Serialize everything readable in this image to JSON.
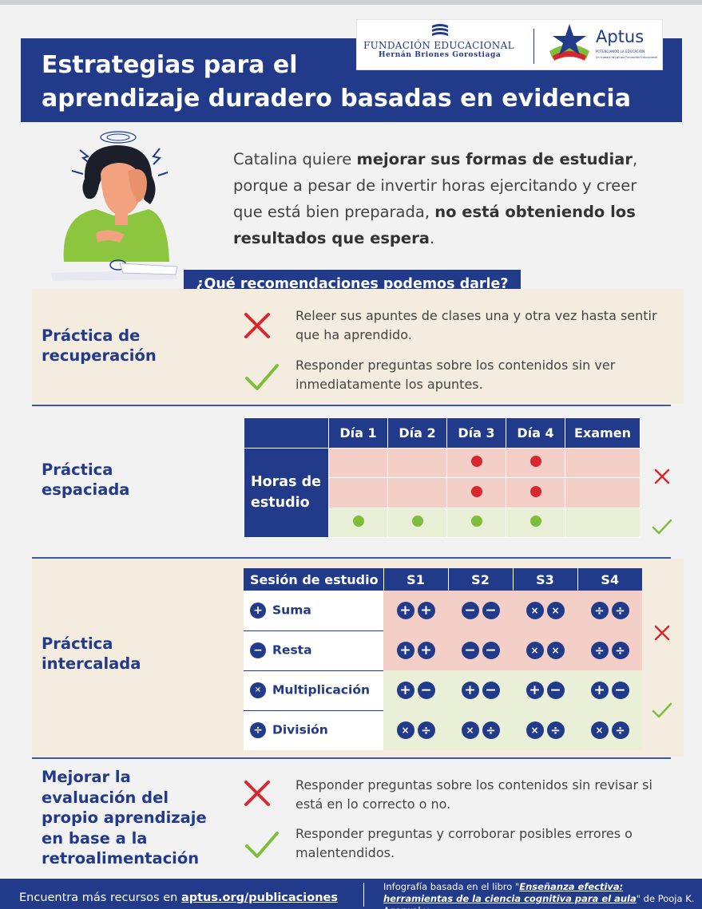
{
  "header": {
    "title_line1": "Estrategias para el",
    "title_line2": "aprendizaje duradero basadas en evidencia",
    "logo_fundacion_line1": "FUNDACIÓN EDUCACIONAL",
    "logo_fundacion_line2": "Hernán Briones Gorostiaga",
    "logo_aptus_name": "Aptus",
    "logo_aptus_tagline": "POTENCIANDO LA EDUCACIÓN",
    "logo_aptus_subtagline": "Un trabajo del grupo Fundación Educacional"
  },
  "intro": {
    "p1": "Catalina quiere ",
    "b1": "mejorar sus formas de estudiar",
    "p2": ", porque a pesar de invertir horas ejercitando y creer que está bien preparada, ",
    "b2": "no está obteniendo los resultados que espera",
    "p3": "."
  },
  "question": "¿Qué recomendaciones podemos darle?",
  "retrieval": {
    "title": "Práctica de recuperación",
    "bad": "Releer sus apuntes de clases una y otra vez hasta sentir que ha aprendido.",
    "good": "Responder preguntas sobre los contenidos sin ver inmediatamente los apuntes."
  },
  "spaced": {
    "title": "Práctica espaciada",
    "row_header": "Horas de estudio",
    "columns": [
      "Día 1",
      "Día 2",
      "Día 3",
      "Día 4",
      "Examen"
    ],
    "rows": [
      {
        "verdict": "bad",
        "dots": [
          0,
          0,
          1,
          1,
          0
        ]
      },
      {
        "verdict": "bad",
        "dots": [
          0,
          0,
          1,
          1,
          0
        ]
      },
      {
        "verdict": "good",
        "dots": [
          1,
          1,
          1,
          1,
          0
        ]
      }
    ]
  },
  "interleaved": {
    "title": "Práctica intercalada",
    "header": "Sesión de estudio",
    "sessions": [
      "S1",
      "S2",
      "S3",
      "S4"
    ],
    "labels": [
      {
        "symbol": "+",
        "name": "Suma"
      },
      {
        "symbol": "−",
        "name": "Resta"
      },
      {
        "symbol": "×",
        "name": "Multiplicación"
      },
      {
        "symbol": "÷",
        "name": "División"
      }
    ],
    "blocked_verdict": "bad",
    "mixed_verdict": "good"
  },
  "feedback": {
    "title": "Mejorar la evaluación del propio aprendizaje en base a la retroalimentación",
    "bad": "Responder preguntas sobre los contenidos sin revisar si está en lo correcto o no.",
    "good": "Responder preguntas y corroborar posibles errores o malentendidos."
  },
  "footer": {
    "left_prefix": "Encuentra más recursos en ",
    "left_link": "aptus.org/publicaciones",
    "right_prefix": "Infografía basada en el libro \"",
    "right_book": "Enseñanza efectiva: herramientas de la ciencia cognitiva para el aula",
    "right_suffix": "\" de Pooja K. Agarwal y"
  },
  "colors": {
    "navy": "#223a8a",
    "cream": "#f3ecdf",
    "red": "#d7282f",
    "green": "#7fbd3d",
    "pink": "#f4cfc7",
    "light_green": "#e9f0d7"
  }
}
